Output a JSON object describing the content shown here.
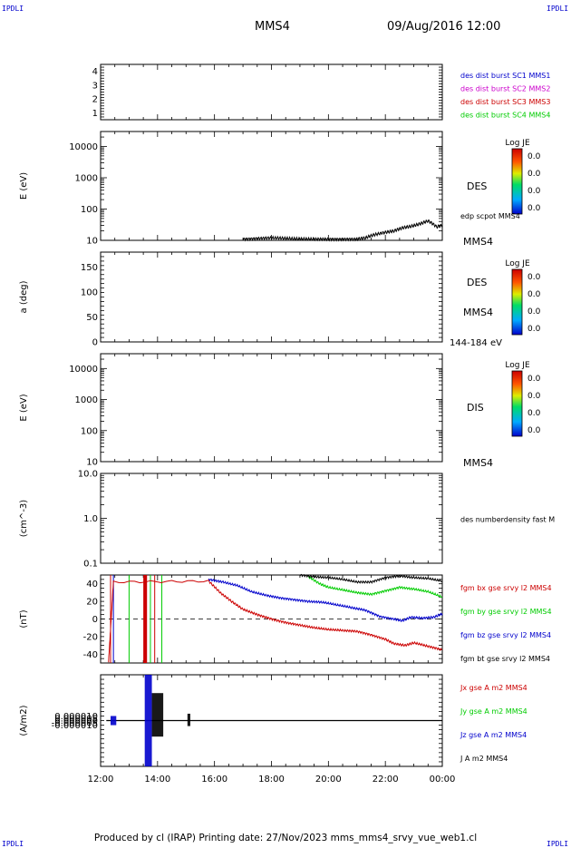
{
  "header": {
    "corner_left": "IPDLI",
    "corner_right": "IPDLI",
    "spacecraft": "MMS4",
    "datetime": "09/Aug/2016 12:00"
  },
  "footer": {
    "text": "Produced by cl (IRAP)   Printing date: 27/Nov/2023   mms_mms4_srvy_vue_web1.cl",
    "corner_left": "IPDLI",
    "corner_right": "IPDLI"
  },
  "colors": {
    "bx": "#cc0000",
    "by": "#00cc00",
    "bz": "#0000cc",
    "bt": "#000000",
    "mms1": "#0000cc",
    "mms2": "#cc00cc",
    "mms3": "#cc0000",
    "mms4": "#00cc00"
  },
  "chart_data": [
    {
      "type": "line",
      "panel": "burst-flags",
      "ylabel": "",
      "ylim": [
        0.5,
        4.5
      ],
      "yticks": [
        "1",
        "2",
        "3",
        "4"
      ],
      "legend": [
        {
          "text": "des dist burst SC1 MMS1",
          "color": "#0000cc"
        },
        {
          "text": "des dist burst SC2 MMS2",
          "color": "#cc00cc"
        },
        {
          "text": "des dist burst SC3 MMS3",
          "color": "#cc0000"
        },
        {
          "text": "des dist burst SC4 MMS4",
          "color": "#00cc00"
        }
      ],
      "series": []
    },
    {
      "type": "heatmap",
      "panel": "des-energy",
      "ylabel": "E (eV)",
      "ylim": [
        10,
        30000
      ],
      "log_y": true,
      "yticks": [
        "10",
        "100",
        "1000",
        "10000"
      ],
      "side_labels": [
        "DES",
        "MMS4"
      ],
      "colorbar": {
        "title": "Log JE",
        "ticks": [
          "0.0",
          "0.0",
          "0.0",
          "0.0"
        ]
      },
      "overlay": {
        "name": "edp scpot MMS4",
        "x": [
          17.0,
          17.5,
          18.0,
          18.5,
          19.0,
          19.5,
          20.0,
          20.5,
          21.0,
          21.3,
          21.6,
          22.0,
          22.3,
          22.6,
          22.9,
          23.2,
          23.5,
          23.8,
          24.0
        ],
        "y": [
          11,
          11.5,
          12,
          11.5,
          11,
          11,
          11,
          11,
          11,
          12,
          15,
          18,
          20,
          25,
          28,
          33,
          42,
          27,
          30
        ]
      }
    },
    {
      "type": "heatmap",
      "panel": "des-pitch-angle",
      "ylabel": "a (deg)",
      "ylim": [
        0,
        180
      ],
      "yticks": [
        "0",
        "50",
        "100",
        "150"
      ],
      "side_labels": [
        "DES",
        "MMS4",
        "144-184 eV"
      ],
      "colorbar": {
        "title": "Log JE",
        "ticks": [
          "0.0",
          "0.0",
          "0.0",
          "0.0"
        ]
      }
    },
    {
      "type": "heatmap",
      "panel": "dis-energy",
      "ylabel": "E (eV)",
      "ylim": [
        10,
        30000
      ],
      "log_y": true,
      "yticks": [
        "10",
        "100",
        "1000",
        "10000"
      ],
      "side_labels": [
        "DIS",
        "MMS4"
      ],
      "colorbar": {
        "title": "Log JE",
        "ticks": [
          "0.0",
          "0.0",
          "0.0",
          "0.0"
        ]
      }
    },
    {
      "type": "line",
      "panel": "density",
      "ylabel": "(cm^-3)",
      "ylim": [
        0.1,
        10.0
      ],
      "log_y": true,
      "yticks": [
        "0.1",
        "1.0",
        "10.0"
      ],
      "legend": [
        {
          "text": "des numberdensity fast M",
          "color": "#000000"
        }
      ],
      "series": []
    },
    {
      "type": "line",
      "panel": "magnetic-field",
      "ylabel": "(nT)",
      "ylim": [
        -50,
        50
      ],
      "yticks": [
        "-40",
        "-20",
        "0",
        "20",
        "40"
      ],
      "legend": [
        {
          "text": "fgm bx gse srvy l2 MMS4",
          "color": "#cc0000"
        },
        {
          "text": "fgm by gse srvy l2 MMS4",
          "color": "#00cc00"
        },
        {
          "text": "fgm bz gse srvy l2 MMS4",
          "color": "#0000cc"
        },
        {
          "text": "fgm bt gse srvy l2 MMS4",
          "color": "#000000"
        }
      ],
      "vlines": [
        {
          "x": 12.35,
          "color": "#cc0000"
        },
        {
          "x": 12.45,
          "color": "#0000cc"
        },
        {
          "x": 13.0,
          "color": "#00cc00"
        },
        {
          "x": 13.5,
          "color": "#cc0000",
          "band_to": 13.63
        },
        {
          "x": 13.75,
          "color": "#00cc00"
        },
        {
          "x": 13.9,
          "color": "#cc0000"
        },
        {
          "x": 14.15,
          "color": "#00cc00"
        }
      ],
      "series": [
        {
          "name": "fgm bx gse srvy l2 MMS4",
          "color": "#cc0000",
          "x": [
            12.28,
            12.45,
            15.8,
            16.2,
            16.6,
            17.0,
            17.5,
            18.0,
            18.5,
            19.0,
            19.5,
            20.0,
            20.5,
            21.0,
            21.5,
            22.0,
            22.3,
            22.7,
            23.0,
            23.5,
            24.0
          ],
          "y": [
            -48,
            42,
            43,
            30,
            20,
            11,
            5,
            0,
            -4,
            -7,
            -10,
            -12,
            -13,
            -14,
            -18,
            -23,
            -28,
            -30,
            -27,
            -31,
            -35
          ]
        },
        {
          "name": "fgm by gse srvy l2 MMS4",
          "color": "#00cc00",
          "x": [
            19.3,
            19.7,
            20.0,
            20.5,
            21.0,
            21.5,
            22.0,
            22.5,
            23.0,
            23.5,
            24.0
          ],
          "y": [
            48,
            40,
            36,
            33,
            30,
            28,
            32,
            36,
            34,
            31,
            25
          ]
        },
        {
          "name": "fgm bz gse srvy l2 MMS4",
          "color": "#0000cc",
          "x": [
            15.8,
            16.3,
            16.8,
            17.3,
            17.8,
            18.3,
            18.8,
            19.3,
            19.8,
            20.3,
            20.8,
            21.3,
            21.8,
            22.3,
            22.6,
            22.9,
            23.3,
            23.7,
            24.0
          ],
          "y": [
            45,
            42,
            38,
            31,
            27,
            24,
            22,
            20,
            19,
            16,
            13,
            10,
            3,
            0,
            -2,
            2,
            1,
            2,
            6
          ]
        },
        {
          "name": "fgm bt gse srvy l2 MMS4",
          "color": "#000000",
          "x": [
            19.0,
            19.5,
            20.0,
            20.5,
            21.0,
            21.5,
            22.0,
            22.5,
            23.0,
            23.5,
            24.0
          ],
          "y": [
            50,
            48,
            47,
            45,
            42,
            42,
            47,
            49,
            47,
            46,
            43
          ]
        }
      ]
    },
    {
      "type": "line",
      "panel": "current-density",
      "ylabel": "(A/m2)",
      "ylim": [
        -0.0001,
        0.0001
      ],
      "yticks": [
        "-0.000010",
        "-0.000005",
        "0.000000",
        "0.000005",
        "0.000010"
      ],
      "legend": [
        {
          "text": "Jx gse A m2 MMS4",
          "color": "#cc0000"
        },
        {
          "text": "Jy gse A m2 MMS4",
          "color": "#00cc00"
        },
        {
          "text": "Jz gse A m2 MMS4",
          "color": "#0000cc"
        },
        {
          "text": "J A m2 MMS4",
          "color": "#000000"
        }
      ],
      "bursts": [
        {
          "x0": 12.35,
          "x1": 12.55,
          "lo": -1e-05,
          "hi": 1e-05,
          "color": "#0000cc"
        },
        {
          "x0": 13.55,
          "x1": 13.8,
          "lo": -0.0001,
          "hi": 0.0001,
          "color": "#0000cc"
        },
        {
          "x0": 13.8,
          "x1": 14.2,
          "lo": -3.5e-05,
          "hi": 6e-05,
          "color": "#000000"
        },
        {
          "x0": 15.05,
          "x1": 15.15,
          "lo": -1.2e-05,
          "hi": 1.5e-05,
          "color": "#000000"
        }
      ],
      "xticks": [
        "12:00",
        "14:00",
        "16:00",
        "18:00",
        "20:00",
        "22:00",
        "00:00"
      ]
    }
  ]
}
